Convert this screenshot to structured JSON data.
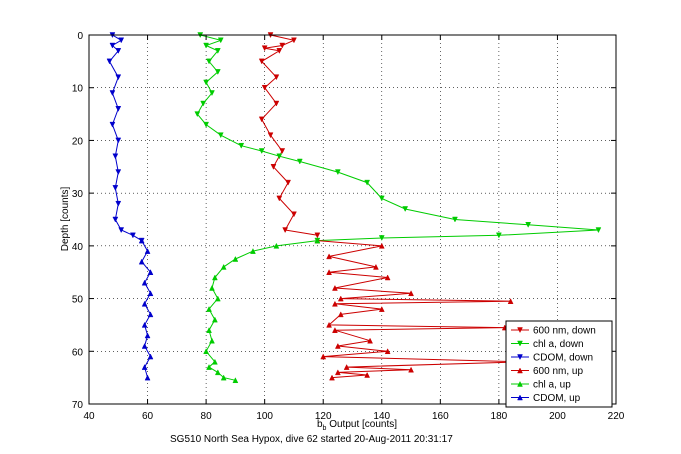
{
  "chart_data": {
    "type": "line",
    "title": "",
    "xlabel_main": "b",
    "xlabel_sub": "b",
    "xlabel_rest": " Output [counts]",
    "ylabel": "Depth [counts]",
    "xlim": [
      40,
      220
    ],
    "ylim": [
      0,
      70
    ],
    "y_reversed": true,
    "grid": true,
    "legend_position": "bottom-right",
    "xticks": [
      40,
      60,
      80,
      100,
      120,
      140,
      160,
      180,
      200,
      220
    ],
    "yticks": [
      0,
      10,
      20,
      30,
      40,
      50,
      60,
      70
    ],
    "xtick_labels": [
      "40",
      "60",
      "80",
      "100",
      "120",
      "140",
      "160",
      "180",
      "200",
      "220"
    ],
    "ytick_labels": [
      "0",
      "10",
      "20",
      "30",
      "40",
      "50",
      "60",
      "70"
    ],
    "series": [
      {
        "name": "600 nm, down",
        "color": "#cc0000",
        "marker": "triangle-down",
        "points": [
          [
            102,
            0
          ],
          [
            110,
            1
          ],
          [
            106,
            2
          ],
          [
            100,
            2.5
          ],
          [
            105,
            3
          ],
          [
            99,
            5
          ],
          [
            104,
            8
          ],
          [
            100,
            10
          ],
          [
            104,
            13
          ],
          [
            99,
            16
          ],
          [
            102,
            19
          ],
          [
            106,
            22
          ],
          [
            103,
            25
          ],
          [
            108,
            28
          ],
          [
            105,
            31
          ],
          [
            110,
            34
          ],
          [
            107,
            37
          ],
          [
            118,
            38
          ]
        ]
      },
      {
        "name": "chl a, down",
        "color": "#00cc00",
        "marker": "triangle-down",
        "points": [
          [
            78,
            0
          ],
          [
            85,
            1
          ],
          [
            80,
            2
          ],
          [
            84,
            3
          ],
          [
            81,
            5
          ],
          [
            84,
            7
          ],
          [
            80,
            9
          ],
          [
            82,
            11
          ],
          [
            79,
            13
          ],
          [
            77,
            15
          ],
          [
            80,
            17
          ],
          [
            85,
            19
          ],
          [
            92,
            21
          ],
          [
            99,
            22
          ],
          [
            105,
            23
          ],
          [
            112,
            24
          ],
          [
            125,
            26
          ],
          [
            135,
            28
          ],
          [
            140,
            31
          ],
          [
            148,
            33
          ],
          [
            165,
            35
          ],
          [
            190,
            36
          ],
          [
            214,
            37
          ],
          [
            180,
            38
          ],
          [
            140,
            38.5
          ],
          [
            118,
            39
          ]
        ]
      },
      {
        "name": "CDOM, down",
        "color": "#0000cc",
        "marker": "triangle-down",
        "points": [
          [
            48,
            0
          ],
          [
            51,
            1
          ],
          [
            48,
            2
          ],
          [
            50,
            3
          ],
          [
            47,
            5
          ],
          [
            50,
            8
          ],
          [
            48,
            11
          ],
          [
            50,
            14
          ],
          [
            48,
            17
          ],
          [
            50,
            20
          ],
          [
            49,
            23
          ],
          [
            50,
            26
          ],
          [
            49,
            29
          ],
          [
            50,
            32
          ],
          [
            49,
            35
          ],
          [
            51,
            37
          ],
          [
            55,
            38
          ],
          [
            58,
            39
          ]
        ]
      },
      {
        "name": "600 nm, up",
        "color": "#cc0000",
        "marker": "triangle-up",
        "points": [
          [
            118,
            39
          ],
          [
            140,
            40
          ],
          [
            122,
            42
          ],
          [
            138,
            44
          ],
          [
            122,
            45
          ],
          [
            142,
            46
          ],
          [
            124,
            48
          ],
          [
            150,
            49
          ],
          [
            126,
            50
          ],
          [
            184,
            50.5
          ],
          [
            124,
            51
          ],
          [
            140,
            52
          ],
          [
            126,
            53
          ],
          [
            122,
            55
          ],
          [
            182,
            55.5
          ],
          [
            124,
            56
          ],
          [
            136,
            58
          ],
          [
            125,
            59
          ],
          [
            142,
            60
          ],
          [
            120,
            61
          ],
          [
            188,
            62
          ],
          [
            128,
            63
          ],
          [
            150,
            63.5
          ],
          [
            125,
            64
          ],
          [
            135,
            64.5
          ],
          [
            123,
            65
          ]
        ]
      },
      {
        "name": "chl a, up",
        "color": "#00cc00",
        "marker": "triangle-up",
        "points": [
          [
            118,
            39
          ],
          [
            104,
            40
          ],
          [
            96,
            41
          ],
          [
            90,
            42.5
          ],
          [
            86,
            44
          ],
          [
            83,
            46
          ],
          [
            82,
            48
          ],
          [
            84,
            50
          ],
          [
            81,
            52
          ],
          [
            83,
            54
          ],
          [
            81,
            56
          ],
          [
            82,
            58
          ],
          [
            80,
            60
          ],
          [
            83,
            62
          ],
          [
            81,
            63
          ],
          [
            84,
            64
          ],
          [
            86,
            65
          ],
          [
            90,
            65.5
          ]
        ]
      },
      {
        "name": "CDOM, up",
        "color": "#0000cc",
        "marker": "triangle-up",
        "points": [
          [
            58,
            39
          ],
          [
            60,
            41
          ],
          [
            58,
            43
          ],
          [
            61,
            45
          ],
          [
            59,
            47
          ],
          [
            61,
            49
          ],
          [
            59,
            51
          ],
          [
            61,
            53
          ],
          [
            59,
            55
          ],
          [
            60,
            57
          ],
          [
            59,
            59
          ],
          [
            61,
            61
          ],
          [
            59,
            63
          ],
          [
            60,
            65
          ]
        ]
      }
    ]
  },
  "caption": "SG510 North Sea Hypox, dive 62 started 20-Aug-2011 20:31:17"
}
